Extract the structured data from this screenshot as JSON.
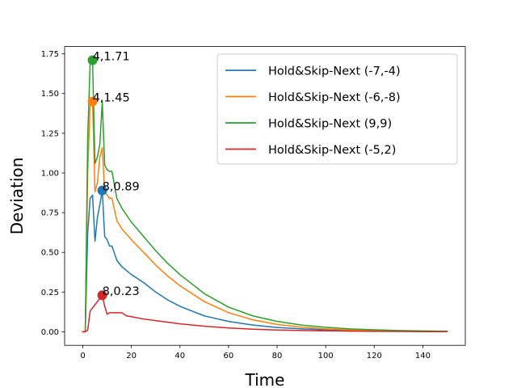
{
  "chart_data": {
    "type": "line",
    "xlabel": "Time",
    "ylabel": "Deviation",
    "xlim": [
      -7.5,
      157.5
    ],
    "ylim": [
      -0.0855,
      1.796
    ],
    "xticks": [
      0,
      20,
      40,
      60,
      80,
      100,
      120,
      140
    ],
    "yticks": [
      0.0,
      0.25,
      0.5,
      0.75,
      1.0,
      1.25,
      1.5,
      1.75
    ],
    "ytick_labels": [
      "0.00",
      "0.25",
      "0.50",
      "0.75",
      "1.00",
      "1.25",
      "1.50",
      "1.75"
    ],
    "grid": false,
    "legend_position": "top-right",
    "series": [
      {
        "name": "Hold&Skip-Next (-7,-4)",
        "color": "#1f77b4",
        "x": [
          0,
          1,
          2,
          3,
          4,
          5,
          6,
          7,
          8,
          9,
          10,
          11,
          12,
          14,
          16,
          20,
          25,
          30,
          35,
          40,
          50,
          60,
          70,
          80,
          90,
          100,
          110,
          120,
          130,
          140,
          150
        ],
        "y": [
          0,
          0,
          0.62,
          0.84,
          0.86,
          0.57,
          0.72,
          0.8,
          0.89,
          0.6,
          0.58,
          0.54,
          0.54,
          0.45,
          0.41,
          0.36,
          0.31,
          0.25,
          0.2,
          0.16,
          0.1,
          0.065,
          0.042,
          0.027,
          0.018,
          0.012,
          0.008,
          0.005,
          0.004,
          0.003,
          0.002
        ]
      },
      {
        "name": "Hold&Skip-Next (-6,-8)",
        "color": "#ff7f0e",
        "x": [
          0,
          1,
          2,
          3,
          4,
          5,
          6,
          7,
          8,
          9,
          10,
          11,
          12,
          14,
          16,
          20,
          25,
          30,
          35,
          40,
          50,
          60,
          70,
          80,
          90,
          100,
          110,
          120,
          130,
          140,
          150
        ],
        "y": [
          0,
          0,
          1.0,
          1.42,
          1.45,
          0.88,
          0.94,
          1.1,
          1.16,
          0.88,
          0.86,
          0.84,
          0.84,
          0.7,
          0.65,
          0.58,
          0.5,
          0.42,
          0.35,
          0.29,
          0.19,
          0.12,
          0.075,
          0.046,
          0.029,
          0.018,
          0.011,
          0.007,
          0.005,
          0.003,
          0.002
        ]
      },
      {
        "name": "Hold&Skip-Next (9,9)",
        "color": "#2ca02c",
        "x": [
          0,
          1,
          2,
          3,
          4,
          5,
          6,
          7,
          8,
          9,
          10,
          11,
          12,
          14,
          16,
          20,
          25,
          30,
          35,
          40,
          50,
          60,
          70,
          80,
          90,
          100,
          110,
          120,
          130,
          140,
          150
        ],
        "y": [
          0,
          0,
          1.22,
          1.69,
          1.71,
          1.06,
          1.1,
          1.18,
          1.45,
          1.05,
          1.02,
          1.01,
          1.01,
          0.84,
          0.78,
          0.69,
          0.6,
          0.51,
          0.43,
          0.36,
          0.24,
          0.155,
          0.1,
          0.065,
          0.042,
          0.028,
          0.018,
          0.012,
          0.008,
          0.005,
          0.003
        ]
      },
      {
        "name": "Hold&Skip-Next (-5,2)",
        "color": "#d62728",
        "x": [
          0,
          1,
          2,
          3,
          4,
          5,
          6,
          7,
          8,
          9,
          10,
          11,
          12,
          14,
          16,
          18,
          20,
          25,
          30,
          40,
          50,
          60,
          70,
          80,
          90,
          100,
          110,
          120,
          130,
          140,
          150
        ],
        "y": [
          0,
          0,
          0.01,
          0.13,
          0.15,
          0.17,
          0.19,
          0.21,
          0.23,
          0.16,
          0.11,
          0.12,
          0.12,
          0.12,
          0.12,
          0.1,
          0.095,
          0.08,
          0.07,
          0.05,
          0.035,
          0.024,
          0.016,
          0.011,
          0.008,
          0.005,
          0.004,
          0.003,
          0.002,
          0.001,
          0.001
        ]
      }
    ],
    "annotations": [
      {
        "text": "4,1.71",
        "x": 4,
        "y": 1.71,
        "color": "#2ca02c"
      },
      {
        "text": "4,1.45",
        "x": 4,
        "y": 1.45,
        "color": "#ff7f0e"
      },
      {
        "text": "8,0.89",
        "x": 8,
        "y": 0.89,
        "color": "#1f77b4"
      },
      {
        "text": "8,0.23",
        "x": 8,
        "y": 0.23,
        "color": "#d62728"
      }
    ]
  }
}
